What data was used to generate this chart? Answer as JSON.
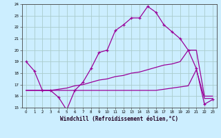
{
  "xlabel": "Windchill (Refroidissement éolien,°C)",
  "bg_color": "#cceeff",
  "grid_color": "#aacccc",
  "line_color": "#990099",
  "xlim": [
    -0.5,
    23.5
  ],
  "ylim": [
    15,
    24
  ],
  "yticks": [
    15,
    16,
    17,
    18,
    19,
    20,
    21,
    22,
    23,
    24
  ],
  "xticks": [
    0,
    1,
    2,
    3,
    4,
    5,
    6,
    7,
    8,
    9,
    10,
    11,
    12,
    13,
    14,
    15,
    16,
    17,
    18,
    19,
    20,
    21,
    22,
    23
  ],
  "line1_x": [
    0,
    1,
    2,
    3,
    4,
    5,
    6,
    7,
    8,
    9,
    10,
    11,
    12,
    13,
    14,
    15,
    16,
    17,
    18,
    19,
    20,
    21,
    22,
    23
  ],
  "line1_y": [
    19,
    18.2,
    16.5,
    16.5,
    15.9,
    14.8,
    16.5,
    17.2,
    18.4,
    19.8,
    20.0,
    21.7,
    22.2,
    22.8,
    22.8,
    23.8,
    23.3,
    22.2,
    21.6,
    21.0,
    20.0,
    18.4,
    15.3,
    15.7
  ],
  "line2_x": [
    0,
    1,
    2,
    3,
    5,
    6,
    7,
    8,
    9,
    10,
    11,
    12,
    13,
    14,
    15,
    16,
    17,
    18,
    19,
    20,
    21,
    22,
    23
  ],
  "line2_y": [
    16.5,
    16.5,
    16.5,
    16.5,
    16.7,
    16.9,
    17.0,
    17.2,
    17.4,
    17.5,
    17.7,
    17.8,
    18.0,
    18.1,
    18.3,
    18.5,
    18.7,
    18.8,
    19.0,
    20.0,
    20.0,
    16.0,
    16.0
  ],
  "line3_x": [
    0,
    1,
    2,
    3,
    5,
    6,
    7,
    8,
    9,
    10,
    11,
    12,
    13,
    14,
    15,
    16,
    17,
    18,
    19,
    20,
    21,
    22,
    23
  ],
  "line3_y": [
    16.5,
    16.5,
    16.5,
    16.5,
    16.5,
    16.5,
    16.5,
    16.5,
    16.5,
    16.5,
    16.5,
    16.5,
    16.5,
    16.5,
    16.5,
    16.5,
    16.6,
    16.7,
    16.8,
    16.9,
    18.3,
    15.8,
    15.8
  ]
}
